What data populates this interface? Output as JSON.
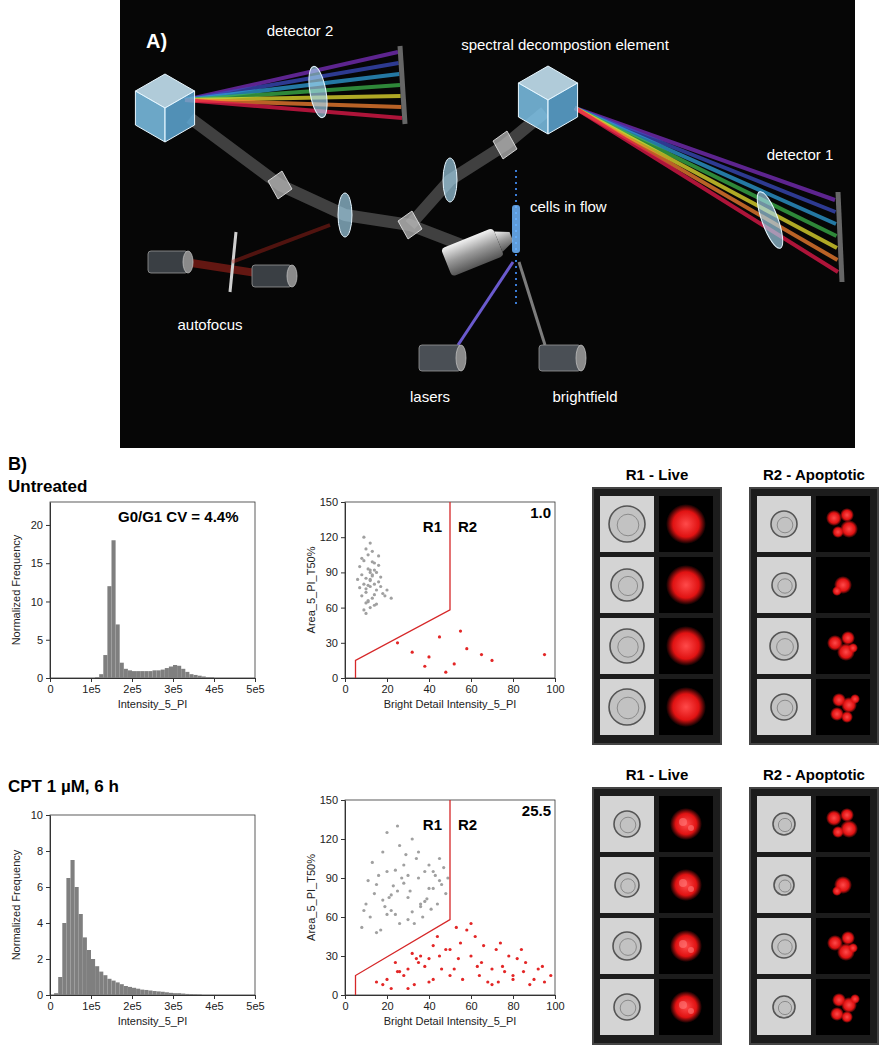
{
  "panel_labels": [
    "A)",
    "B)"
  ],
  "diagram": {
    "detector_2": "detector 2",
    "spectral_element": "spectral decompostion element",
    "detector_1": "detector 1",
    "autofocus": "autofocus",
    "cells_in_flow": "cells in flow",
    "lasers": "lasers",
    "brightfield": "brightfield"
  },
  "conditions": [
    {
      "label": "Untreated",
      "galleries": [
        "R1 - Live",
        "R2 - Apoptotic"
      ]
    },
    {
      "label": "CPT 1 µM, 6 h",
      "galleries": [
        "R1 - Live",
        "R2 - Apoptotic"
      ]
    }
  ],
  "chart_data": [
    {
      "type": "histogram",
      "x_label": "Intensity_5_PI",
      "y_label": "Normalized Frequency",
      "annotation": "G0/G1 CV = 4.4%",
      "color": "#7f7f7f",
      "bins": [
        0,
        10000,
        20000,
        30000,
        40000,
        50000,
        60000,
        70000,
        80000,
        90000,
        100000,
        110000,
        120000,
        130000,
        140000,
        150000,
        160000,
        170000,
        180000,
        190000,
        200000,
        210000,
        220000,
        230000,
        240000,
        250000,
        260000,
        270000,
        280000,
        290000,
        300000,
        310000,
        320000,
        330000,
        340000,
        350000,
        360000,
        370000,
        380000,
        390000,
        400000,
        410000,
        420000,
        430000,
        440000,
        450000,
        460000,
        470000,
        480000,
        490000,
        500000
      ],
      "values": [
        0,
        0,
        0,
        0,
        0,
        0,
        0,
        0,
        0,
        0,
        0,
        0.1,
        0.5,
        3,
        12,
        18,
        7,
        2,
        1.2,
        1,
        0.9,
        0.9,
        0.9,
        0.9,
        0.9,
        1,
        1,
        1.1,
        1.3,
        1.5,
        1.7,
        1.6,
        1.2,
        0.8,
        0.5,
        0.4,
        0.3,
        0.2,
        0.1,
        0.1,
        0,
        0,
        0,
        0,
        0,
        0,
        0,
        0,
        0,
        0
      ],
      "xlim": [
        0,
        500000
      ],
      "xticks": [
        0,
        {
          "value": 100000,
          "label": "1e5"
        },
        {
          "value": 200000,
          "label": "2e5"
        },
        {
          "value": 300000,
          "label": "3e5"
        },
        {
          "value": 400000,
          "label": "4e5"
        },
        {
          "value": 500000,
          "label": "5e5"
        }
      ],
      "ylim": [
        0,
        23
      ],
      "yticks": [
        0,
        5,
        10,
        15,
        20
      ]
    },
    {
      "type": "scatter",
      "x_label": "Bright Detail Intensity_5_PI",
      "y_label": "Area_5_PI_T50%",
      "gate_label": "1.0",
      "gate": {
        "x": [
          5,
          5,
          50,
          50
        ],
        "y": [
          0,
          15,
          58,
          150
        ],
        "color": "#d62728"
      },
      "series": [
        {
          "name": "R1",
          "color": "#a0a0a0",
          "x": [
            8,
            10,
            12,
            14,
            9,
            11,
            13,
            15,
            7,
            16,
            10,
            12,
            14,
            18,
            9,
            11,
            13,
            8,
            15,
            17,
            12,
            10,
            14,
            6,
            19,
            11,
            13,
            9,
            12,
            16,
            10,
            14,
            8,
            13,
            11,
            20,
            15,
            12,
            9,
            17,
            10,
            13,
            11,
            14,
            12,
            7,
            22,
            16,
            12,
            10
          ],
          "values": [
            70,
            85,
            78,
            92,
            100,
            65,
            88,
            75,
            95,
            82,
            110,
            60,
            98,
            72,
            80,
            105,
            68,
            88,
            90,
            78,
            115,
            73,
            62,
            84,
            70,
            93,
            108,
            58,
            83,
            96,
            76,
            80,
            102,
            87,
            66,
            75,
            63,
            92,
            120,
            86,
            55,
            99,
            79,
            71,
            84,
            77,
            68,
            104,
            90,
            64
          ]
        },
        {
          "name": "R2",
          "color": "#e32626",
          "x": [
            25,
            32,
            40,
            45,
            52,
            58,
            65,
            70,
            55,
            38,
            48,
            95
          ],
          "values": [
            30,
            22,
            18,
            35,
            12,
            25,
            20,
            15,
            40,
            10,
            5,
            20
          ]
        }
      ],
      "xlim": [
        0,
        100
      ],
      "xticks": [
        0,
        20,
        40,
        60,
        80,
        100
      ],
      "ylim": [
        0,
        150
      ],
      "yticks": [
        0,
        30,
        60,
        90,
        120,
        150
      ]
    },
    {
      "type": "histogram",
      "x_label": "Intensity_5_PI",
      "y_label": "Normalized Frequency",
      "color": "#7f7f7f",
      "bins": [
        0,
        10000,
        20000,
        30000,
        40000,
        50000,
        60000,
        70000,
        80000,
        90000,
        100000,
        110000,
        120000,
        130000,
        140000,
        150000,
        160000,
        170000,
        180000,
        190000,
        200000,
        210000,
        220000,
        230000,
        240000,
        250000,
        260000,
        270000,
        280000,
        290000,
        300000,
        310000,
        320000,
        330000,
        340000,
        350000,
        360000,
        370000,
        380000,
        390000,
        400000,
        410000,
        420000,
        430000,
        440000,
        450000,
        460000,
        470000,
        480000,
        490000,
        500000
      ],
      "values": [
        0,
        0.1,
        1,
        4,
        6.5,
        7.5,
        6,
        4.5,
        3.2,
        2.5,
        2,
        1.6,
        1.3,
        1.1,
        0.9,
        0.8,
        0.7,
        0.6,
        0.5,
        0.45,
        0.4,
        0.35,
        0.3,
        0.28,
        0.25,
        0.22,
        0.2,
        0.18,
        0.15,
        0.12,
        0.1,
        0.1,
        0.08,
        0.06,
        0.05,
        0.04,
        0.03,
        0,
        0,
        0,
        0,
        0,
        0,
        0,
        0,
        0,
        0,
        0,
        0,
        0
      ],
      "xlim": [
        0,
        500000
      ],
      "xticks": [
        0,
        {
          "value": 100000,
          "label": "1e5"
        },
        {
          "value": 200000,
          "label": "2e5"
        },
        {
          "value": 300000,
          "label": "3e5"
        },
        {
          "value": 400000,
          "label": "4e5"
        },
        {
          "value": 500000,
          "label": "5e5"
        }
      ],
      "ylim": [
        0,
        10
      ],
      "yticks": [
        0,
        2,
        4,
        6,
        8,
        10
      ]
    },
    {
      "type": "scatter",
      "x_label": "Bright Detail Intensity_5_PI",
      "y_label": "Area_5_PI_T50%",
      "gate_label": "25.5",
      "gate": {
        "x": [
          5,
          5,
          50,
          50
        ],
        "y": [
          0,
          15,
          58,
          150
        ],
        "color": "#d62728"
      },
      "series": [
        {
          "name": "R1",
          "color": "#a0a0a0",
          "x": [
            10,
            15,
            20,
            25,
            30,
            35,
            40,
            45,
            12,
            18,
            22,
            28,
            32,
            38,
            42,
            48,
            14,
            24,
            34,
            44,
            8,
            16,
            26,
            36,
            46,
            20,
            30,
            40,
            11,
            21,
            31,
            41,
            17,
            27,
            37,
            47,
            13,
            23,
            33,
            43,
            19,
            29,
            39,
            9,
            49,
            25,
            35,
            15,
            45,
            22,
            28,
            32,
            38,
            18,
            26,
            42,
            30,
            24,
            36,
            20
          ],
          "values": [
            70,
            85,
            95,
            80,
            75,
            90,
            82,
            88,
            60,
            110,
            65,
            100,
            120,
            72,
            95,
            78,
            78,
            62,
            105,
            70,
            52,
            92,
            115,
            68,
            85,
            125,
            58,
            100,
            88,
            75,
            80,
            66,
            50,
            90,
            60,
            98,
            102,
            84,
            55,
            92,
            68,
            108,
            74,
            65,
            90,
            130,
            110,
            48,
            105,
            77,
            86,
            64,
            95,
            73,
            55,
            82,
            92,
            96,
            70,
            62
          ]
        },
        {
          "name": "R2",
          "color": "#e32626",
          "x": [
            15,
            20,
            25,
            30,
            35,
            40,
            45,
            50,
            55,
            60,
            65,
            70,
            75,
            80,
            85,
            90,
            95,
            22,
            28,
            33,
            38,
            42,
            48,
            52,
            58,
            62,
            68,
            72,
            78,
            82,
            88,
            92,
            18,
            26,
            36,
            44,
            54,
            64,
            74,
            84,
            94,
            30,
            40,
            50,
            60,
            70,
            80,
            24,
            34,
            46,
            56,
            66,
            76,
            86,
            32,
            42,
            53,
            63,
            73,
            98
          ],
          "values": [
            10,
            12,
            18,
            20,
            25,
            28,
            30,
            35,
            40,
            30,
            25,
            20,
            22,
            15,
            18,
            12,
            10,
            5,
            15,
            8,
            22,
            12,
            35,
            20,
            50,
            45,
            10,
            35,
            30,
            28,
            8,
            20,
            8,
            18,
            30,
            45,
            28,
            15,
            40,
            35,
            22,
            5,
            10,
            15,
            55,
            8,
            12,
            25,
            28,
            20,
            12,
            38,
            18,
            25,
            32,
            38,
            52,
            22,
            10,
            15
          ]
        }
      ],
      "xlim": [
        0,
        100
      ],
      "xticks": [
        0,
        20,
        40,
        60,
        80,
        100
      ],
      "ylim": [
        0,
        150
      ],
      "yticks": [
        0,
        30,
        60,
        90,
        120,
        150
      ]
    }
  ]
}
